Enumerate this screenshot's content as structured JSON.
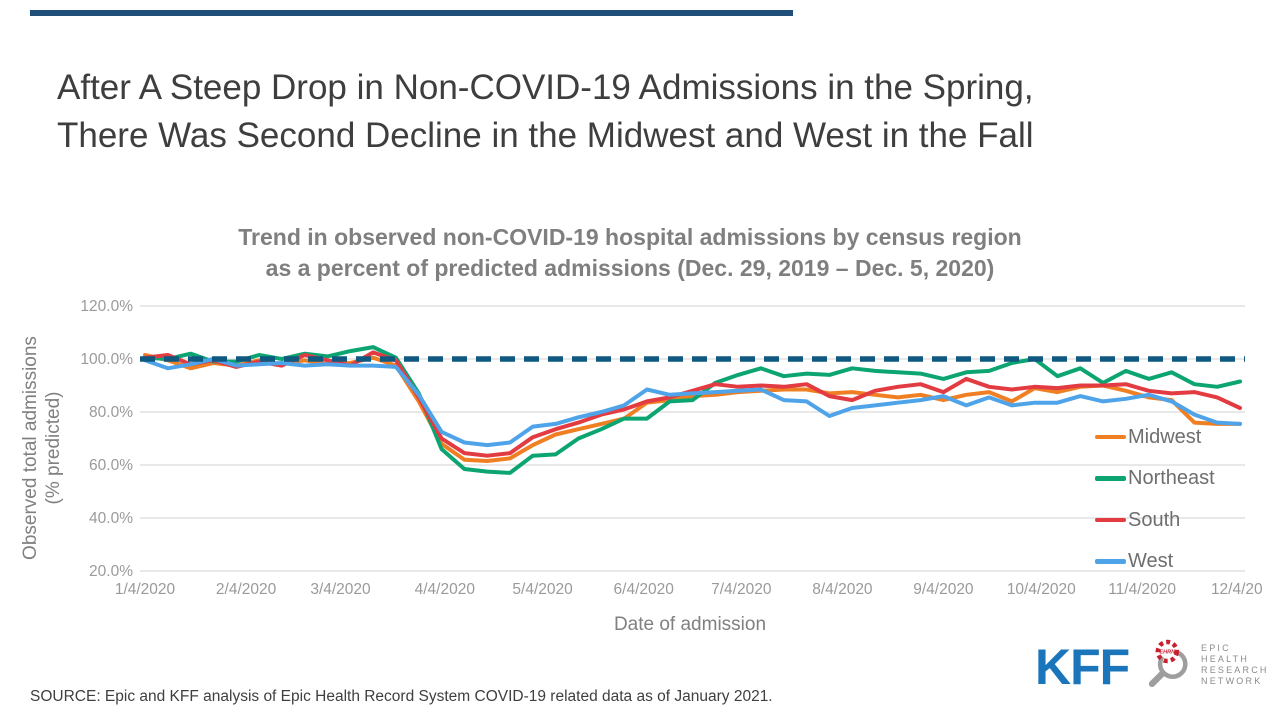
{
  "accent_bar_color": "#1f4e79",
  "header": {
    "title_line1": "After A Steep Drop in Non-COVID-19 Admissions in the Spring,",
    "title_line2": "There Was Second Decline in the Midwest and West in the Fall"
  },
  "chart_data": {
    "type": "line",
    "title_line1": "Trend in observed non-COVID-19 hospital admissions by census region",
    "title_line2": "as a percent of predicted admissions (Dec. 29, 2019 – Dec. 5, 2020)",
    "xlabel": "Date of admission",
    "ylabel_line1": "Observed total admissions",
    "ylabel_line2": "(% predicted)",
    "ylim": [
      20,
      120
    ],
    "grid": "horizontal",
    "y_ticks": [
      120,
      100,
      80,
      60,
      40,
      20
    ],
    "y_tick_labels": [
      "120.0%",
      "100.0%",
      "80.0%",
      "60.0%",
      "40.0%",
      "20.0%"
    ],
    "x_tick_labels": [
      "1/4/2020",
      "2/4/2020",
      "3/4/2020",
      "4/4/2020",
      "5/4/2020",
      "6/4/2020",
      "7/4/2020",
      "8/4/2020",
      "9/4/2020",
      "10/4/2020",
      "11/4/2020",
      "12/4/20"
    ],
    "reference_line": {
      "value": 100,
      "style": "dashed",
      "color": "#0f5880"
    },
    "legend_position": "right-inside",
    "x": [
      "1/4",
      "1/11",
      "1/18",
      "1/25",
      "2/1",
      "2/8",
      "2/15",
      "2/22",
      "2/29",
      "3/7",
      "3/14",
      "3/21",
      "3/28",
      "4/4",
      "4/11",
      "4/18",
      "4/25",
      "5/2",
      "5/9",
      "5/16",
      "5/23",
      "5/30",
      "6/6",
      "6/13",
      "6/20",
      "6/27",
      "7/4",
      "7/11",
      "7/18",
      "7/25",
      "8/1",
      "8/8",
      "8/15",
      "8/22",
      "8/29",
      "9/5",
      "9/12",
      "9/19",
      "9/26",
      "10/3",
      "10/10",
      "10/17",
      "10/24",
      "10/31",
      "11/7",
      "11/14",
      "11/21",
      "11/28",
      "12/5"
    ],
    "series": [
      {
        "name": "Midwest",
        "color": "#f07f23",
        "values": [
          101.5,
          99.5,
          96.5,
          98.5,
          97.5,
          99.5,
          98,
          99.5,
          98,
          98.5,
          100.5,
          97.5,
          84,
          68,
          62,
          61.5,
          62.5,
          67.5,
          71.5,
          73.5,
          75.5,
          77.5,
          83.5,
          84.5,
          86,
          86.5,
          87.5,
          88,
          88.5,
          88.5,
          87,
          87.5,
          86.5,
          85.5,
          86.5,
          84.5,
          86.5,
          87.5,
          84,
          89,
          87.5,
          89.5,
          90,
          88,
          85.5,
          84.5,
          76,
          75.5,
          75.5
        ]
      },
      {
        "name": "Northeast",
        "color": "#0ca572",
        "values": [
          100.5,
          100,
          102,
          99,
          99,
          101.5,
          100,
          102,
          101,
          103,
          104.5,
          100.5,
          87,
          66,
          58.5,
          57.5,
          57,
          63.5,
          64,
          70,
          73.5,
          77.5,
          77.5,
          84,
          84.5,
          91,
          94,
          96.5,
          93.5,
          94.5,
          94,
          96.5,
          95.5,
          95,
          94.5,
          92.5,
          95,
          95.5,
          98.5,
          100,
          93.5,
          96.5,
          91,
          95.5,
          92.5,
          95,
          90.5,
          89.5,
          91.5
        ]
      },
      {
        "name": "South",
        "color": "#e23b41",
        "values": [
          100.5,
          101.5,
          98,
          99.5,
          97,
          99,
          97.5,
          101.5,
          99.5,
          97.5,
          102.5,
          99.5,
          85.5,
          70,
          64.5,
          63.5,
          64.5,
          70.5,
          73.5,
          76,
          79,
          81,
          84,
          85.5,
          88,
          90.5,
          89.5,
          90,
          89.5,
          90.5,
          86,
          84.5,
          88,
          89.5,
          90.5,
          87.5,
          92.5,
          89.5,
          88.5,
          89.5,
          89,
          90,
          90,
          90.5,
          88,
          87,
          87.5,
          85.5,
          81.5
        ]
      },
      {
        "name": "West",
        "color": "#4fa3e8",
        "values": [
          99.5,
          96.5,
          98,
          100,
          97.5,
          98,
          98.5,
          97.5,
          98,
          97.5,
          97.5,
          97,
          86.5,
          72.5,
          68.5,
          67.5,
          68.5,
          74.5,
          75.5,
          78,
          80,
          82.5,
          88.5,
          86.5,
          87,
          87.5,
          88,
          88.5,
          84.5,
          84,
          78.5,
          81.5,
          82.5,
          83.5,
          84.5,
          86,
          82.5,
          85.5,
          82.5,
          83.5,
          83.5,
          86,
          84,
          85,
          86.5,
          84,
          79,
          76,
          75.5
        ]
      }
    ]
  },
  "footer": {
    "source": "SOURCE: Epic and KFF analysis of Epic Health Record System COVID-19 related data as of January 2021.",
    "kff_logo_text": "KFF",
    "ehrn_logo": {
      "acronym": "EHRN",
      "line1": "EPIC",
      "line2": "HEALTH",
      "line3": "RESEARCH",
      "line4": "NETWORK"
    }
  }
}
